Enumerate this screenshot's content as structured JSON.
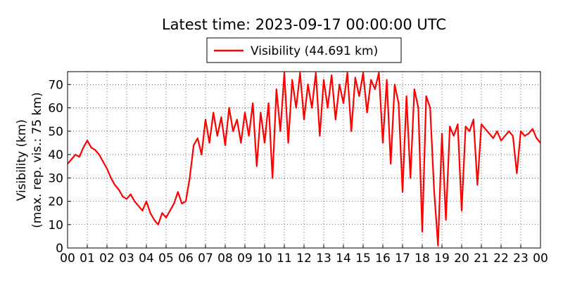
{
  "chart_data": {
    "type": "line",
    "title": "Latest time: 2023-09-17 00:00:00 UTC",
    "ylabel": [
      "Visibility (km)",
      "(max. rep. vis.: 75 km)"
    ],
    "x": [
      0,
      0.2,
      0.4,
      0.6,
      0.8,
      1,
      1.2,
      1.4,
      1.6,
      1.8,
      2,
      2.2,
      2.4,
      2.6,
      2.8,
      3,
      3.2,
      3.4,
      3.6,
      3.8,
      4,
      4.2,
      4.4,
      4.6,
      4.8,
      5,
      5.2,
      5.4,
      5.6,
      5.8,
      6,
      6.2,
      6.4,
      6.6,
      6.8,
      7,
      7.2,
      7.4,
      7.6,
      7.8,
      8,
      8.2,
      8.4,
      8.6,
      8.8,
      9,
      9.2,
      9.4,
      9.6,
      9.8,
      10,
      10.2,
      10.4,
      10.6,
      10.8,
      11,
      11.2,
      11.4,
      11.6,
      11.8,
      12,
      12.2,
      12.4,
      12.6,
      12.8,
      13,
      13.2,
      13.4,
      13.6,
      13.8,
      14,
      14.2,
      14.4,
      14.6,
      14.8,
      15,
      15.2,
      15.4,
      15.6,
      15.8,
      16,
      16.2,
      16.4,
      16.6,
      16.8,
      17,
      17.2,
      17.4,
      17.6,
      17.8,
      18,
      18.2,
      18.4,
      18.6,
      18.8,
      19,
      19.2,
      19.4,
      19.6,
      19.8,
      20,
      20.2,
      20.4,
      20.6,
      20.8,
      21,
      21.2,
      21.4,
      21.6,
      21.8,
      22,
      22.2,
      22.4,
      22.6,
      22.8,
      23,
      23.2,
      23.4,
      23.6,
      23.8,
      24
    ],
    "series": [
      {
        "name": "Visibility (44.691 km)",
        "color": "#ff0000",
        "values": [
          36,
          38,
          40,
          39,
          43,
          46,
          43,
          42,
          40,
          37,
          34,
          30,
          27,
          25,
          22,
          21,
          23,
          20,
          18,
          16,
          20,
          15,
          12,
          10,
          15,
          13,
          16,
          19,
          24,
          19,
          20,
          30,
          44,
          47,
          40,
          55,
          45,
          58,
          48,
          56,
          44,
          60,
          50,
          55,
          45,
          58,
          48,
          62,
          35,
          58,
          45,
          62,
          30,
          68,
          50,
          75,
          45,
          72,
          60,
          75,
          55,
          70,
          60,
          75,
          48,
          72,
          60,
          74,
          55,
          70,
          62,
          75,
          50,
          73,
          65,
          75,
          58,
          72,
          68,
          75,
          45,
          72,
          36,
          70,
          62,
          24,
          65,
          30,
          68,
          60,
          7,
          65,
          60,
          25,
          1,
          49,
          12,
          52,
          48,
          53,
          16,
          52,
          50,
          55,
          27,
          53,
          51,
          49,
          47,
          50,
          46,
          48,
          50,
          48,
          32,
          50,
          48,
          49,
          51,
          47,
          45
        ]
      }
    ],
    "xlim": [
      0,
      24
    ],
    "ylim": [
      0,
      75.5
    ],
    "xticks": [
      {
        "value": 0,
        "label": "00"
      },
      {
        "value": 1,
        "label": "01"
      },
      {
        "value": 2,
        "label": "02"
      },
      {
        "value": 3,
        "label": "03"
      },
      {
        "value": 4,
        "label": "04"
      },
      {
        "value": 5,
        "label": "05"
      },
      {
        "value": 6,
        "label": "06"
      },
      {
        "value": 7,
        "label": "07"
      },
      {
        "value": 8,
        "label": "08"
      },
      {
        "value": 9,
        "label": "09"
      },
      {
        "value": 10,
        "label": "10"
      },
      {
        "value": 11,
        "label": "11"
      },
      {
        "value": 12,
        "label": "12"
      },
      {
        "value": 13,
        "label": "13"
      },
      {
        "value": 14,
        "label": "14"
      },
      {
        "value": 15,
        "label": "15"
      },
      {
        "value": 16,
        "label": "16"
      },
      {
        "value": 17,
        "label": "17"
      },
      {
        "value": 18,
        "label": "18"
      },
      {
        "value": 19,
        "label": "19"
      },
      {
        "value": 20,
        "label": "20"
      },
      {
        "value": 21,
        "label": "21"
      },
      {
        "value": 22,
        "label": "22"
      },
      {
        "value": 23,
        "label": "23"
      },
      {
        "value": 24,
        "label": "00"
      }
    ],
    "yticks": [
      0,
      10,
      20,
      30,
      40,
      50,
      60,
      70
    ],
    "grid": true
  }
}
